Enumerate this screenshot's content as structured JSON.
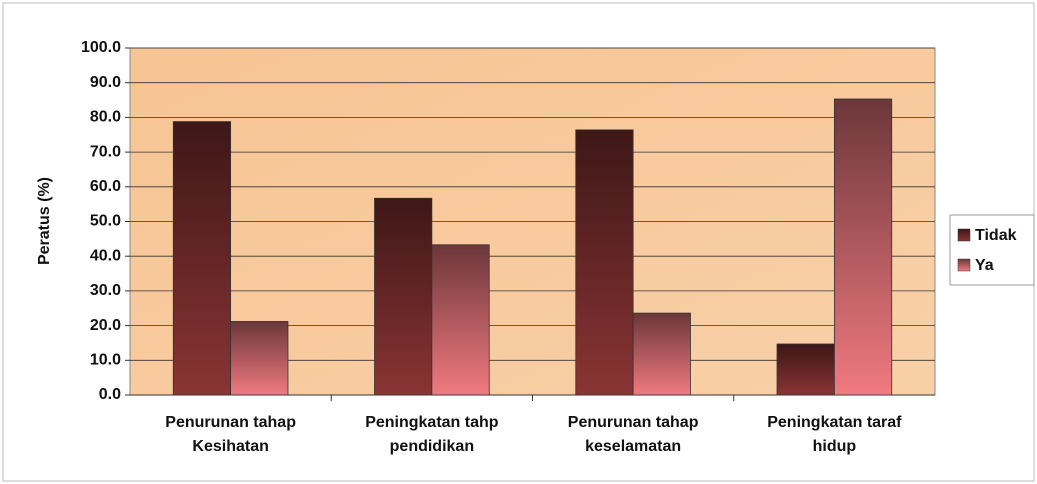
{
  "chart_data": {
    "type": "bar",
    "y_label": "Peratus (%)",
    "categories": [
      "Penurunan tahap Kesihatan",
      "Peningkatan tahp pendidikan",
      "Penurunan tahap keselamatan",
      "Peningkatan taraf hidup"
    ],
    "series": [
      {
        "name": "Tidak",
        "color": "#8a3434",
        "values": [
          78.8,
          56.7,
          76.4,
          14.7
        ]
      },
      {
        "name": "Ya",
        "color": "#f07a80",
        "values": [
          21.2,
          43.3,
          23.6,
          85.3
        ]
      }
    ],
    "ylim": [
      0,
      100
    ],
    "yticks": [
      {
        "value": 0,
        "label": "0.0"
      },
      {
        "value": 10,
        "label": "10.0"
      },
      {
        "value": 20,
        "label": "20.0"
      },
      {
        "value": 30,
        "label": "30.0"
      },
      {
        "value": 40,
        "label": "40.0"
      },
      {
        "value": 50,
        "label": "50.0"
      },
      {
        "value": 60,
        "label": "60.0"
      },
      {
        "value": 70,
        "label": "70.0"
      },
      {
        "value": 80,
        "label": "80.0"
      },
      {
        "value": 90,
        "label": "90.0"
      },
      {
        "value": 100,
        "label": "100.0"
      }
    ],
    "grid": true,
    "legend": "right"
  }
}
